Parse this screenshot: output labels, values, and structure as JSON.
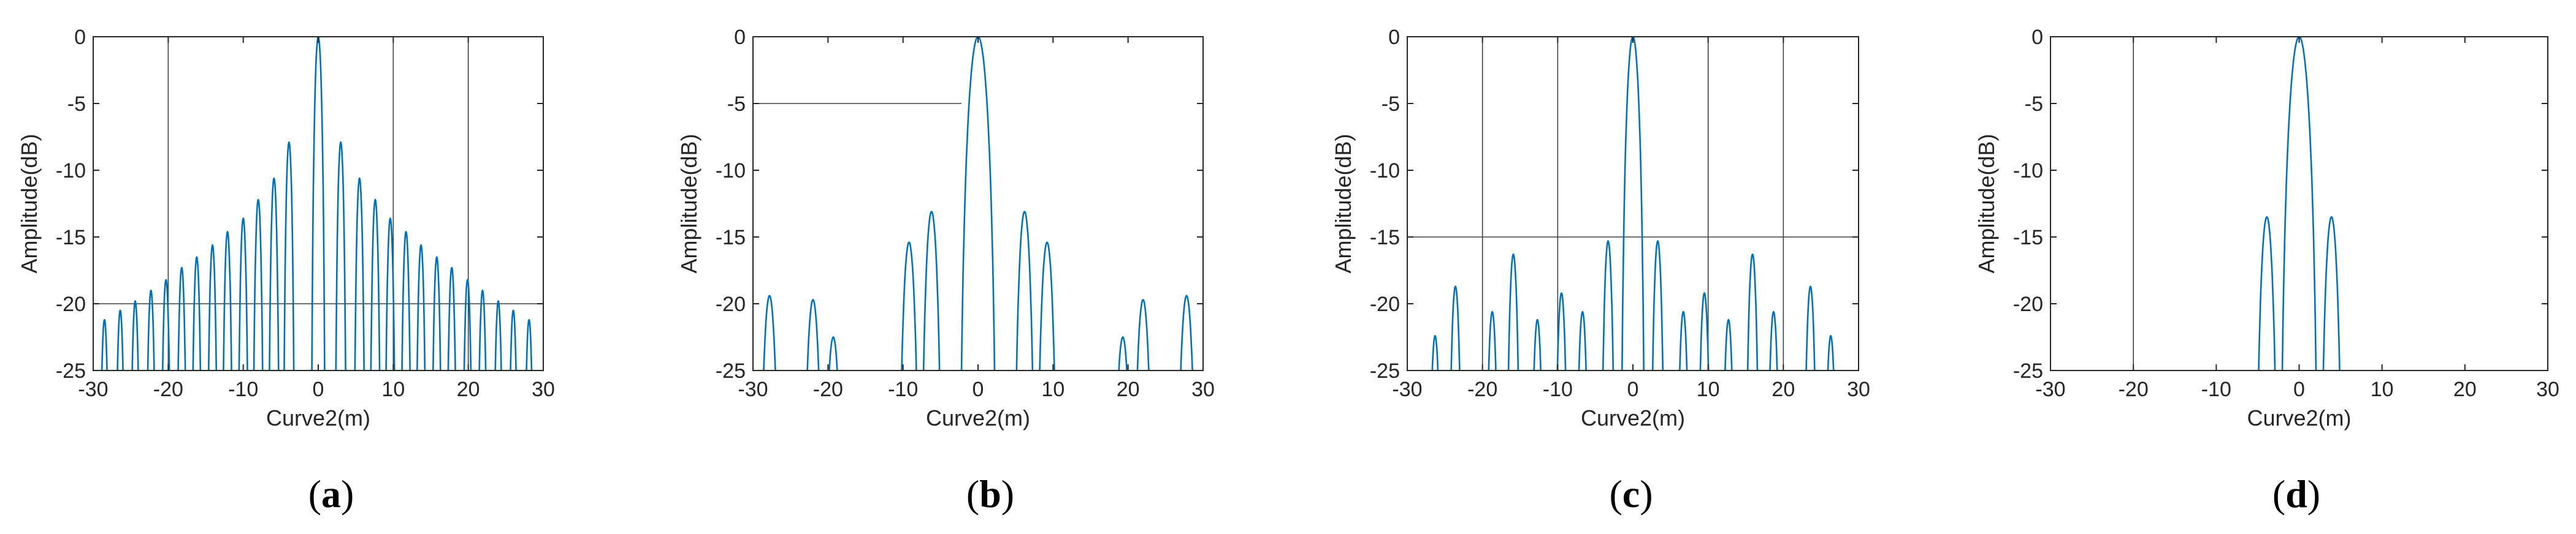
{
  "colors": {
    "curve": "#0072bd",
    "axis": "#262626",
    "guide": "#404040"
  },
  "chart_data": [
    {
      "type": "line",
      "panel_label": "a",
      "xlabel": "Curve2(m)",
      "ylabel": "Amplitude(dB)",
      "xlim": [
        -30,
        30
      ],
      "ylim": [
        -25,
        0
      ],
      "xticks": [
        -30,
        -20,
        -10,
        0,
        10,
        20,
        30
      ],
      "yticks": [
        0,
        -5,
        -10,
        -15,
        -20,
        -25
      ],
      "grid": false,
      "series": [
        {
          "kind": "lobes",
          "peaks": [
            {
              "x": -28.5,
              "y": -21.2
            },
            {
              "x": -26.4,
              "y": -20.5
            },
            {
              "x": -24.4,
              "y": -19.8
            },
            {
              "x": -22.3,
              "y": -19.0
            },
            {
              "x": -20.3,
              "y": -18.2
            },
            {
              "x": -18.2,
              "y": -17.3
            },
            {
              "x": -16.2,
              "y": -16.5
            },
            {
              "x": -14.1,
              "y": -15.6
            },
            {
              "x": -12.1,
              "y": -14.6
            },
            {
              "x": -10.0,
              "y": -13.6
            },
            {
              "x": -8.0,
              "y": -12.2
            },
            {
              "x": -5.9,
              "y": -10.6
            },
            {
              "x": -3.9,
              "y": -7.9
            },
            {
              "x": 0.0,
              "y": 0.0
            },
            {
              "x": 3.0,
              "y": -7.9
            },
            {
              "x": 5.5,
              "y": -10.6
            },
            {
              "x": 7.6,
              "y": -12.2
            },
            {
              "x": 9.6,
              "y": -13.6
            },
            {
              "x": 11.7,
              "y": -14.6
            },
            {
              "x": 13.7,
              "y": -15.6
            },
            {
              "x": 15.8,
              "y": -16.5
            },
            {
              "x": 17.8,
              "y": -17.3
            },
            {
              "x": 19.9,
              "y": -18.2
            },
            {
              "x": 21.9,
              "y": -19.0
            },
            {
              "x": 24.0,
              "y": -19.8
            },
            {
              "x": 26.0,
              "y": -20.5
            },
            {
              "x": 28.1,
              "y": -21.2
            }
          ],
          "half_widths": {
            "main": 1.0,
            "side": 0.85
          }
        }
      ],
      "guide_lines": [
        {
          "orientation": "vertical",
          "value": -20
        },
        {
          "orientation": "vertical",
          "value": 10
        },
        {
          "orientation": "vertical",
          "value": 20
        },
        {
          "orientation": "horizontal",
          "value": -20
        }
      ]
    },
    {
      "type": "line",
      "panel_label": "b",
      "xlabel": "Curve2(m)",
      "ylabel": "Amplitude(dB)",
      "xlim": [
        -30,
        30
      ],
      "ylim": [
        -25,
        0
      ],
      "xticks": [
        -30,
        -20,
        -10,
        0,
        10,
        20,
        30
      ],
      "yticks": [
        0,
        -5,
        -10,
        -15,
        -20,
        -25
      ],
      "grid": false,
      "series": [
        {
          "kind": "lobes",
          "peaks": [
            {
              "x": -27.8,
              "y": -19.4
            },
            {
              "x": -22.0,
              "y": -19.7
            },
            {
              "x": -19.3,
              "y": -22.5
            },
            {
              "x": -9.2,
              "y": -15.4
            },
            {
              "x": -6.2,
              "y": -13.1
            },
            {
              "x": 0.0,
              "y": 0.0
            },
            {
              "x": 6.2,
              "y": -13.1
            },
            {
              "x": 9.2,
              "y": -15.4
            },
            {
              "x": 19.3,
              "y": -22.5
            },
            {
              "x": 22.0,
              "y": -19.7
            },
            {
              "x": 27.8,
              "y": -19.4
            }
          ],
          "half_widths": {
            "main": 2.6,
            "side": 1.6
          }
        }
      ],
      "guide_lines": [
        {
          "orientation": "horizontal",
          "value": -5,
          "from": -30,
          "to": -2.2
        },
        {
          "orientation": "horizontal",
          "value": -25,
          "from": -15.5,
          "to": -15.1
        },
        {
          "orientation": "horizontal",
          "value": -25,
          "from": 14.9,
          "to": 15.4
        }
      ]
    },
    {
      "type": "line",
      "panel_label": "c",
      "xlabel": "Curve2(m)",
      "ylabel": "Amplitude(dB)",
      "xlim": [
        -30,
        30
      ],
      "ylim": [
        -25,
        0
      ],
      "xticks": [
        -30,
        -20,
        -10,
        0,
        10,
        20,
        30
      ],
      "yticks": [
        0,
        -5,
        -10,
        -15,
        -20,
        -25
      ],
      "grid": false,
      "series": [
        {
          "kind": "lobes",
          "peaks": [
            {
              "x": -26.3,
              "y": -22.4
            },
            {
              "x": -23.6,
              "y": -18.7
            },
            {
              "x": -18.7,
              "y": -20.6
            },
            {
              "x": -15.9,
              "y": -16.3
            },
            {
              "x": -12.7,
              "y": -21.2
            },
            {
              "x": -9.5,
              "y": -19.2
            },
            {
              "x": -6.7,
              "y": -20.6
            },
            {
              "x": -3.3,
              "y": -15.3
            },
            {
              "x": 0.0,
              "y": 0.0
            },
            {
              "x": 3.3,
              "y": -15.3
            },
            {
              "x": 6.7,
              "y": -20.6
            },
            {
              "x": 9.5,
              "y": -19.2
            },
            {
              "x": 12.7,
              "y": -21.2
            },
            {
              "x": 15.9,
              "y": -16.3
            },
            {
              "x": 18.7,
              "y": -20.6
            },
            {
              "x": 23.6,
              "y": -18.7
            },
            {
              "x": 26.3,
              "y": -22.4
            }
          ],
          "half_widths": {
            "main": 1.7,
            "side": 1.1
          }
        }
      ],
      "guide_lines": [
        {
          "orientation": "vertical",
          "value": -20
        },
        {
          "orientation": "vertical",
          "value": -10
        },
        {
          "orientation": "vertical",
          "value": 10
        },
        {
          "orientation": "vertical",
          "value": 20
        },
        {
          "orientation": "horizontal",
          "value": -15
        }
      ]
    },
    {
      "type": "line",
      "panel_label": "d",
      "xlabel": "Curve2(m)",
      "ylabel": "Amplitude(dB)",
      "xlim": [
        -30,
        30
      ],
      "ylim": [
        -25,
        0
      ],
      "xticks": [
        -30,
        -20,
        -10,
        0,
        10,
        20,
        30
      ],
      "yticks": [
        0,
        -5,
        -10,
        -15,
        -20,
        -25
      ],
      "grid": false,
      "series": [
        {
          "kind": "lobes",
          "peaks": [
            {
              "x": -3.9,
              "y": -13.5
            },
            {
              "x": 0.0,
              "y": 0.0
            },
            {
              "x": 3.9,
              "y": -13.5
            }
          ],
          "half_widths": {
            "main": 2.4,
            "side": 1.5
          }
        }
      ],
      "guide_lines": [
        {
          "orientation": "vertical",
          "value": -20
        }
      ]
    }
  ]
}
